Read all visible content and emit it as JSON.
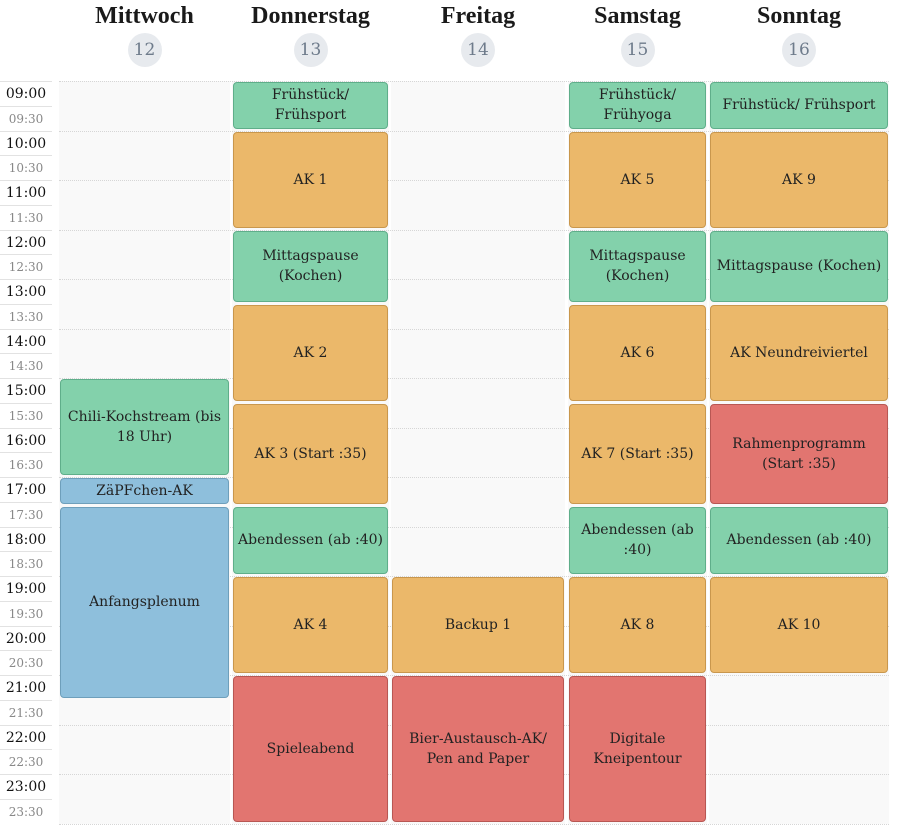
{
  "days": [
    {
      "name": "Mittwoch",
      "num": "12"
    },
    {
      "name": "Donnerstag",
      "num": "13"
    },
    {
      "name": "Freitag",
      "num": "14"
    },
    {
      "name": "Samstag",
      "num": "15"
    },
    {
      "name": "Sonntag",
      "num": "16"
    }
  ],
  "times": [
    "09:00",
    "09:30",
    "10:00",
    "10:30",
    "11:00",
    "11:30",
    "12:00",
    "12:30",
    "13:00",
    "13:30",
    "14:00",
    "14:30",
    "15:00",
    "15:30",
    "16:00",
    "16:30",
    "17:00",
    "17:30",
    "18:00",
    "18:30",
    "19:00",
    "19:30",
    "20:00",
    "20:30",
    "21:00",
    "21:30",
    "22:00",
    "22:30",
    "23:00",
    "23:30"
  ],
  "events": [
    {
      "day": 0,
      "start": "15:00",
      "end": "17:00",
      "label": "Chili-Kochstream (bis 18 Uhr)",
      "color": "green"
    },
    {
      "day": 0,
      "start": "17:00",
      "end": "17:35",
      "label": "ZäPFchen-AK",
      "color": "blue"
    },
    {
      "day": 0,
      "start": "17:35",
      "end": "21:30",
      "label": "Anfangsplenum",
      "color": "blue"
    },
    {
      "day": 1,
      "start": "09:00",
      "end": "10:00",
      "label": "Frühstück/ Frühsport",
      "color": "green"
    },
    {
      "day": 1,
      "start": "10:00",
      "end": "12:00",
      "label": "AK 1",
      "color": "orange"
    },
    {
      "day": 1,
      "start": "12:00",
      "end": "13:30",
      "label": "Mittagspause (Kochen)",
      "color": "green"
    },
    {
      "day": 1,
      "start": "13:30",
      "end": "15:30",
      "label": "AK 2",
      "color": "orange"
    },
    {
      "day": 1,
      "start": "15:30",
      "end": "17:35",
      "label": "AK 3 (Start :35)",
      "color": "orange"
    },
    {
      "day": 1,
      "start": "17:35",
      "end": "19:00",
      "label": "Abendessen (ab :40)",
      "color": "green"
    },
    {
      "day": 1,
      "start": "19:00",
      "end": "21:00",
      "label": "AK 4",
      "color": "orange"
    },
    {
      "day": 1,
      "start": "21:00",
      "end": "24:00",
      "label": "Spieleabend",
      "color": "red"
    },
    {
      "day": 2,
      "start": "19:00",
      "end": "21:00",
      "label": "Backup 1",
      "color": "orange"
    },
    {
      "day": 2,
      "start": "21:00",
      "end": "24:00",
      "label": "Bier-Austausch-AK/ Pen and Paper",
      "color": "red"
    },
    {
      "day": 3,
      "start": "09:00",
      "end": "10:00",
      "label": "Frühstück/ Frühyoga",
      "color": "green"
    },
    {
      "day": 3,
      "start": "10:00",
      "end": "12:00",
      "label": "AK 5",
      "color": "orange"
    },
    {
      "day": 3,
      "start": "12:00",
      "end": "13:30",
      "label": "Mittagspause (Kochen)",
      "color": "green"
    },
    {
      "day": 3,
      "start": "13:30",
      "end": "15:30",
      "label": "AK 6",
      "color": "orange"
    },
    {
      "day": 3,
      "start": "15:30",
      "end": "17:35",
      "label": "AK 7 (Start :35)",
      "color": "orange"
    },
    {
      "day": 3,
      "start": "17:35",
      "end": "19:00",
      "label": "Abendessen (ab :40)",
      "color": "green"
    },
    {
      "day": 3,
      "start": "19:00",
      "end": "21:00",
      "label": "AK 8",
      "color": "orange"
    },
    {
      "day": 3,
      "start": "21:00",
      "end": "24:00",
      "label": "Digitale Kneipentour",
      "color": "red"
    },
    {
      "day": 4,
      "start": "09:00",
      "end": "10:00",
      "label": "Frühstück/ Frühsport",
      "color": "green"
    },
    {
      "day": 4,
      "start": "10:00",
      "end": "12:00",
      "label": "AK 9",
      "color": "orange"
    },
    {
      "day": 4,
      "start": "12:00",
      "end": "13:30",
      "label": "Mittagspause (Kochen)",
      "color": "green"
    },
    {
      "day": 4,
      "start": "13:30",
      "end": "15:30",
      "label": "AK Neundreiviertel",
      "color": "orange"
    },
    {
      "day": 4,
      "start": "15:30",
      "end": "17:35",
      "label": "Rahmenprogramm (Start :35)",
      "color": "red"
    },
    {
      "day": 4,
      "start": "17:35",
      "end": "19:00",
      "label": "Abendessen (ab :40)",
      "color": "green"
    },
    {
      "day": 4,
      "start": "19:00",
      "end": "21:00",
      "label": "AK 10",
      "color": "orange"
    }
  ]
}
